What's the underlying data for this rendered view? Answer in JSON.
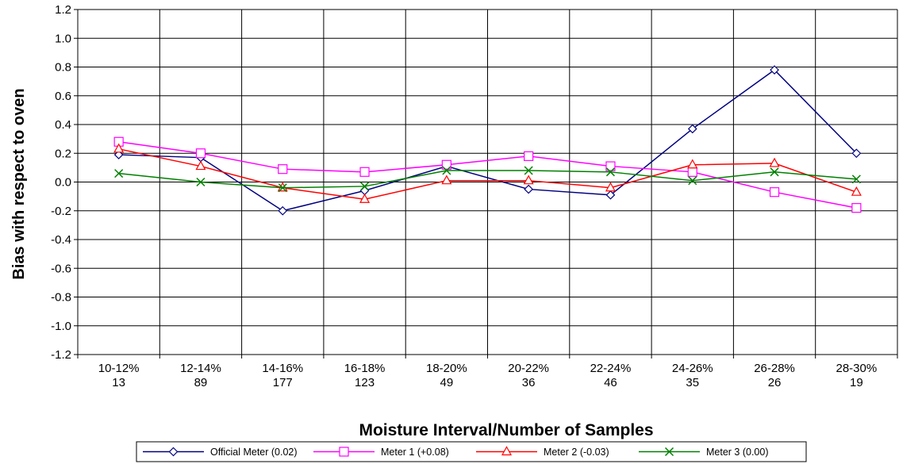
{
  "chart_data": {
    "type": "line",
    "categories": [
      "10-12%\n13",
      "12-14%\n89",
      "14-16%\n177",
      "16-18%\n123",
      "18-20%\n49",
      "20-22%\n36",
      "22-24%\n46",
      "24-26%\n35",
      "26-28%\n26",
      "28-30%\n19"
    ],
    "xlabel": "Moisture Interval/Number of Samples",
    "ylabel": "Bias with respect to oven",
    "ylim": [
      -1.2,
      1.2
    ],
    "yticks": [
      "1.2",
      "1.0",
      "0.8",
      "0.6",
      "0.4",
      "0.2",
      "0.0",
      "-0.2",
      "-0.4",
      "-0.6",
      "-0.8",
      "-1.0",
      "-1.2"
    ],
    "grid": true,
    "legend_position": "bottom",
    "series": [
      {
        "name": "Official Meter (0.02)",
        "color": "#000080",
        "marker": "diamond",
        "values": [
          0.19,
          0.17,
          -0.2,
          -0.06,
          0.11,
          -0.05,
          -0.09,
          0.37,
          0.78,
          0.2
        ]
      },
      {
        "name": "Meter 1 (+0.08)",
        "color": "#ff00ff",
        "marker": "square",
        "values": [
          0.28,
          0.2,
          0.09,
          0.07,
          0.12,
          0.18,
          0.11,
          0.07,
          -0.07,
          -0.18
        ]
      },
      {
        "name": "Meter 2 (-0.03)",
        "color": "#ff0000",
        "marker": "triangle",
        "values": [
          0.23,
          0.11,
          -0.04,
          -0.12,
          0.01,
          0.01,
          -0.04,
          0.12,
          0.13,
          -0.07
        ]
      },
      {
        "name": "Meter 3 (0.00)",
        "color": "#008000",
        "marker": "x",
        "values": [
          0.06,
          0.0,
          -0.04,
          -0.03,
          0.08,
          0.08,
          0.07,
          0.01,
          0.07,
          0.02
        ]
      }
    ]
  }
}
